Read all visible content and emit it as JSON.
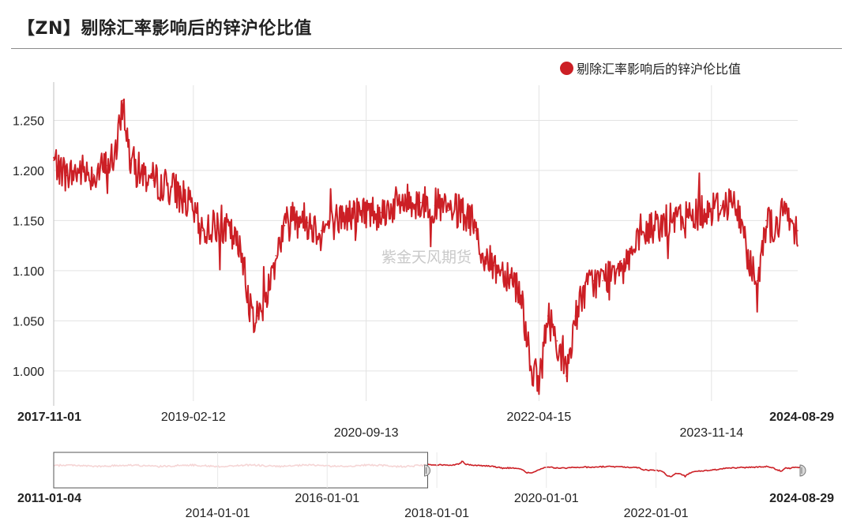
{
  "title": "【ZN】剔除汇率影响后的锌沪伦比值",
  "watermark": "紫金天风期货",
  "colors": {
    "series": "#cc1f25",
    "series_light": "#edb2b3",
    "grid": "#e3e3e3",
    "axis": "#bfbfbf"
  },
  "legend": {
    "label": "剔除汇率影响后的锌沪伦比值",
    "icon": "red-circle-icon"
  },
  "chart_data": {
    "type": "line",
    "title": "【ZN】剔除汇率影响后的锌沪伦比值",
    "series": [
      {
        "name": "剔除汇率影响后的锌沪伦比值",
        "x": [
          "2017-11-01",
          "2017-12-15",
          "2018-02-01",
          "2018-03-15",
          "2018-05-01",
          "2018-06-01",
          "2018-06-20",
          "2018-07-15",
          "2018-08-15",
          "2018-10-01",
          "2018-11-15",
          "2019-01-01",
          "2019-02-12",
          "2019-03-15",
          "2019-05-01",
          "2019-06-15",
          "2019-08-01",
          "2019-08-20",
          "2019-09-15",
          "2019-10-15",
          "2019-11-15",
          "2019-12-15",
          "2020-01-15",
          "2020-03-01",
          "2020-04-15",
          "2020-06-01",
          "2020-07-15",
          "2020-09-13",
          "2020-11-01",
          "2020-12-15",
          "2021-02-01",
          "2021-03-15",
          "2021-05-01",
          "2021-06-15",
          "2021-08-01",
          "2021-09-15",
          "2021-10-15",
          "2021-11-15",
          "2021-12-15",
          "2022-01-15",
          "2022-02-15",
          "2022-03-15",
          "2022-04-15",
          "2022-05-15",
          "2022-06-15",
          "2022-07-15",
          "2022-08-15",
          "2022-09-15",
          "2022-10-15",
          "2022-11-15",
          "2022-12-15",
          "2023-01-15",
          "2023-03-01",
          "2023-04-15",
          "2023-06-01",
          "2023-07-15",
          "2023-09-01",
          "2023-10-15",
          "2023-11-14",
          "2023-12-15",
          "2024-01-20",
          "2024-02-20",
          "2024-03-20",
          "2024-04-15",
          "2024-05-15",
          "2024-06-15",
          "2024-07-15",
          "2024-08-29"
        ],
        "values": [
          1.21,
          1.195,
          1.2,
          1.196,
          1.205,
          1.22,
          1.27,
          1.21,
          1.2,
          1.19,
          1.185,
          1.178,
          1.158,
          1.14,
          1.145,
          1.138,
          1.112,
          1.06,
          1.055,
          1.075,
          1.115,
          1.145,
          1.16,
          1.148,
          1.14,
          1.15,
          1.155,
          1.16,
          1.158,
          1.165,
          1.17,
          1.168,
          1.165,
          1.16,
          1.158,
          1.14,
          1.11,
          1.105,
          1.1,
          1.095,
          1.075,
          1.01,
          0.985,
          1.055,
          1.03,
          0.995,
          1.055,
          1.08,
          1.09,
          1.09,
          1.1,
          1.11,
          1.12,
          1.14,
          1.148,
          1.15,
          1.155,
          1.16,
          1.162,
          1.165,
          1.17,
          1.15,
          1.11,
          1.09,
          1.15,
          1.14,
          1.16,
          1.14
        ]
      }
    ],
    "x_ticks": [
      "2017-11-01",
      "2019-02-12",
      "2020-09-13",
      "2022-04-15",
      "2023-11-14",
      "2024-08-29"
    ],
    "y_ticks": [
      "1.250",
      "1.200",
      "1.150",
      "1.100",
      "1.050",
      "1.000"
    ],
    "ylim": [
      0.97,
      1.285
    ],
    "grid": true,
    "legend_position": "top-right",
    "navigator": {
      "range_start": "2011-01-04",
      "range_end": "2024-08-29",
      "selected_start": "2017-11-01",
      "selected_end": "2024-08-29",
      "ticks": [
        "2011-01-04",
        "2014-01-01",
        "2016-01-01",
        "2018-01-01",
        "2020-01-01",
        "2022-01-01",
        "2024-08-29"
      ]
    }
  }
}
